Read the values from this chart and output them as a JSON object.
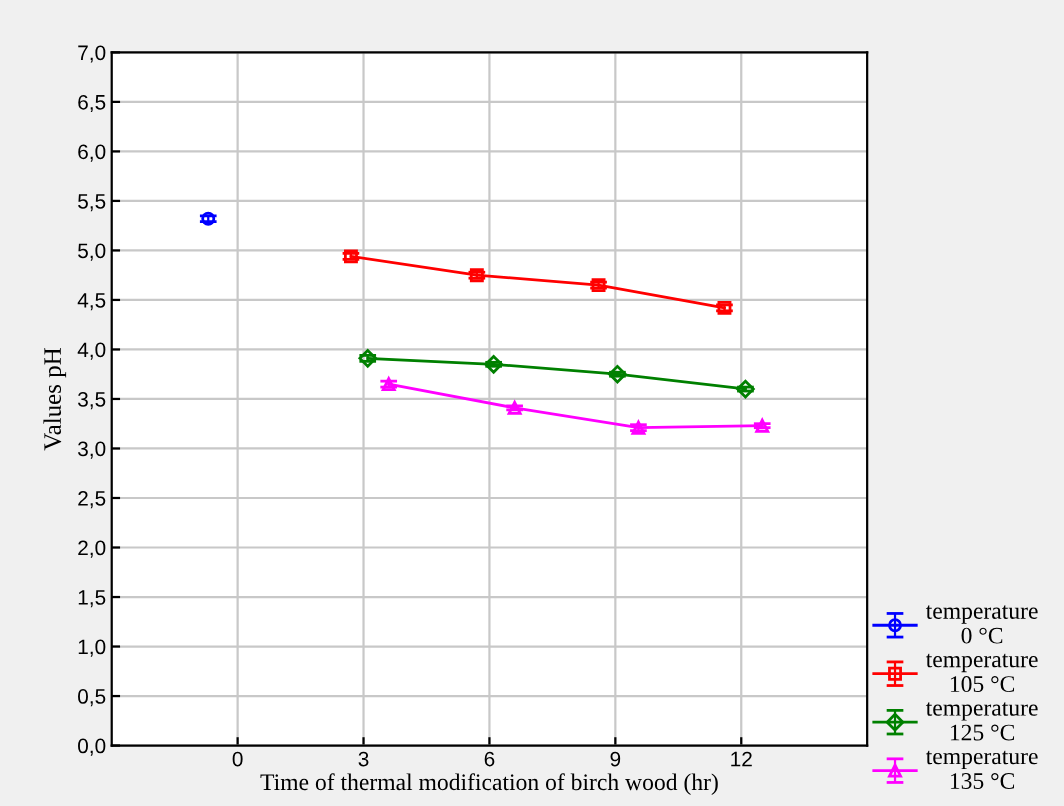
{
  "chart_data": {
    "type": "line",
    "xlabel": "Time of thermal modification of birch wood (hr)",
    "ylabel": "Values pH",
    "xlim": [
      -3,
      15
    ],
    "xticks": [
      0,
      3,
      6,
      9,
      12
    ],
    "ylim": [
      0,
      7
    ],
    "yticks": [
      {
        "value": 0,
        "label": "0,0"
      },
      {
        "value": 0.5,
        "label": "0,5"
      },
      {
        "value": 1,
        "label": "1,0"
      },
      {
        "value": 1.5,
        "label": "1,5"
      },
      {
        "value": 2,
        "label": "2,0"
      },
      {
        "value": 2.5,
        "label": "2,5"
      },
      {
        "value": 3,
        "label": "3,0"
      },
      {
        "value": 3.5,
        "label": "3,5"
      },
      {
        "value": 4,
        "label": "4,0"
      },
      {
        "value": 4.5,
        "label": "4,5"
      },
      {
        "value": 5,
        "label": "5,0"
      },
      {
        "value": 5.5,
        "label": "5,5"
      },
      {
        "value": 6,
        "label": "6,0"
      },
      {
        "value": 6.5,
        "label": "6,5"
      },
      {
        "value": 7,
        "label": "7,0"
      }
    ],
    "grid": true,
    "legend": "bottom right",
    "series": [
      {
        "name": "temperature\n0 °C",
        "color": "#0000ff",
        "marker": "circle",
        "x": [
          -0.7
        ],
        "values": [
          5.32
        ],
        "errors": [
          0.03
        ]
      },
      {
        "name": "temperature\n105 °C",
        "color": "#ff0000",
        "marker": "square",
        "x": [
          2.7,
          5.7,
          8.6,
          11.6
        ],
        "values": [
          4.94,
          4.75,
          4.65,
          4.42
        ],
        "errors": [
          0.03,
          0.03,
          0.03,
          0.03
        ]
      },
      {
        "name": "temperature\n125 °C",
        "color": "#008000",
        "marker": "diamond",
        "x": [
          3.1,
          6.1,
          9.05,
          12.1
        ],
        "values": [
          3.91,
          3.85,
          3.75,
          3.6
        ],
        "errors": [
          0.03,
          0.02,
          0.02,
          0.02
        ]
      },
      {
        "name": "temperature\n135 °C",
        "color": "#ff00ff",
        "marker": "triangle",
        "x": [
          3.6,
          6.6,
          9.55,
          12.5
        ],
        "values": [
          3.65,
          3.41,
          3.21,
          3.23
        ],
        "errors": [
          0.03,
          0.02,
          0.03,
          0.02
        ]
      }
    ]
  }
}
